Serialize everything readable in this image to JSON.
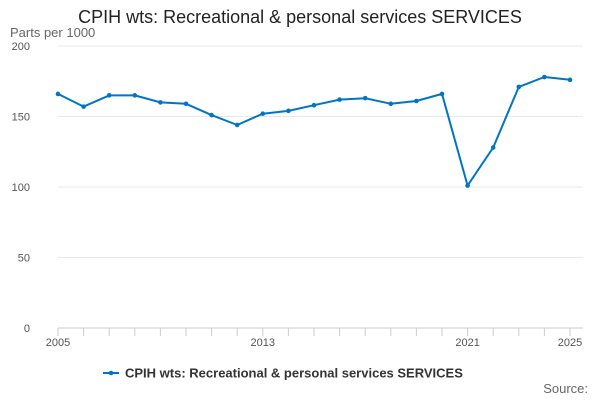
{
  "title": "CPIH wts: Recreational & personal services SERVICES",
  "source_label": "Source:",
  "chart_data": {
    "type": "line",
    "title": "CPIH wts: Recreational & personal services SERVICES",
    "ylabel": "Parts per 1000",
    "xlabel": "",
    "ylim": [
      0,
      200
    ],
    "xlim": [
      2005,
      2025
    ],
    "y_ticks": [
      0,
      50,
      100,
      150,
      200
    ],
    "x_ticks": [
      2005,
      2006,
      2007,
      2008,
      2009,
      2010,
      2011,
      2012,
      2013,
      2014,
      2015,
      2016,
      2017,
      2018,
      2019,
      2020,
      2021,
      2022,
      2023,
      2024,
      2025
    ],
    "x_tick_labels": [
      "2005",
      "2013",
      "2021",
      "2025"
    ],
    "grid": "horizontal",
    "legend_position": "bottom",
    "color": "#0075c4",
    "series": [
      {
        "name": "CPIH wts: Recreational & personal services SERVICES",
        "x": [
          2005,
          2006,
          2007,
          2008,
          2009,
          2010,
          2011,
          2012,
          2013,
          2014,
          2015,
          2016,
          2017,
          2018,
          2019,
          2020,
          2021,
          2022,
          2023,
          2024,
          2025
        ],
        "values": [
          166,
          157,
          165,
          165,
          160,
          159,
          151,
          144,
          152,
          154,
          158,
          162,
          163,
          159,
          161,
          166,
          101,
          128,
          171,
          178,
          176
        ]
      }
    ]
  }
}
